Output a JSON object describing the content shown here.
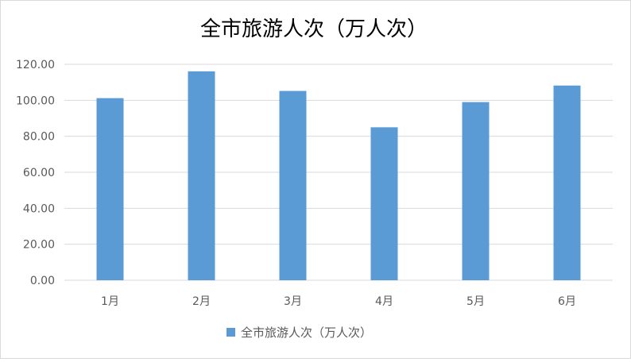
{
  "chart_data": {
    "type": "bar",
    "title": "全市旅游人次（万人次）",
    "xlabel": "",
    "ylabel": "",
    "categories": [
      "1月",
      "2月",
      "3月",
      "4月",
      "5月",
      "6月"
    ],
    "series": [
      {
        "name": "全市旅游人次（万人次）",
        "values": [
          101.2,
          116.1,
          105.2,
          85.0,
          99.0,
          108.2
        ]
      }
    ],
    "ylim": [
      0,
      120
    ],
    "yticks": [
      "0.00",
      "20.00",
      "40.00",
      "60.00",
      "80.00",
      "100.00",
      "120.00"
    ],
    "grid": true,
    "legend_position": "bottom",
    "colors": {
      "bar": "#5b9bd5",
      "grid": "#d9d9d9",
      "text": "#595959",
      "title": "#000000"
    }
  }
}
